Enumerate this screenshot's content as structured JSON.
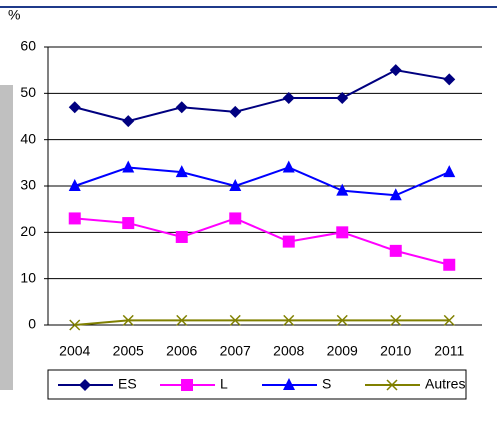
{
  "chart_data": {
    "type": "line",
    "y_label": "%",
    "categories": [
      "2004",
      "2005",
      "2006",
      "2007",
      "2008",
      "2009",
      "2010",
      "2011"
    ],
    "series": [
      {
        "name": "ES",
        "color": "#000080",
        "marker": "diamond",
        "values": [
          47,
          44,
          47,
          46,
          49,
          49,
          55,
          53
        ]
      },
      {
        "name": "L",
        "color": "#ff00ff",
        "marker": "square",
        "values": [
          23,
          22,
          19,
          23,
          18,
          20,
          16,
          13
        ]
      },
      {
        "name": "S",
        "color": "#0000ff",
        "marker": "triangle",
        "values": [
          30,
          34,
          33,
          30,
          34,
          29,
          28,
          33
        ]
      },
      {
        "name": "Autres",
        "color": "#808000",
        "marker": "x",
        "values": [
          0,
          1,
          1,
          1,
          1,
          1,
          1,
          1
        ]
      }
    ],
    "ylim": [
      0,
      60
    ],
    "yticks": [
      0,
      10,
      20,
      30,
      40,
      50,
      60
    ],
    "grid": true
  }
}
